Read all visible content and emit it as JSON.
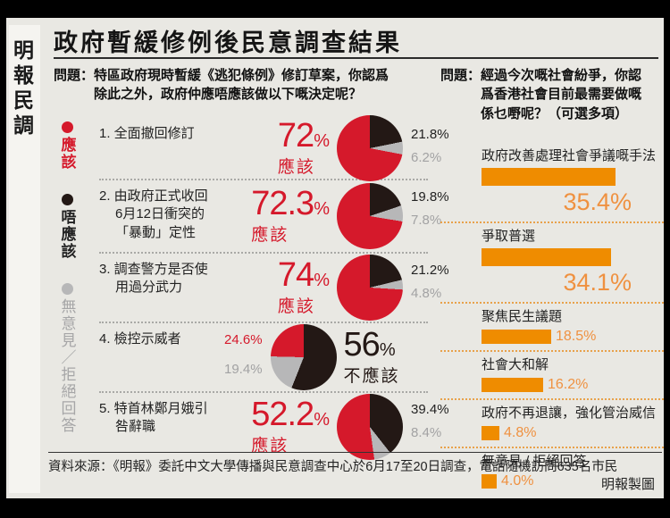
{
  "frame": {
    "masthead": "明報民調",
    "title": "政府暫緩修例後民意調查結果",
    "source": "資料來源：《明報》委託中文大學傳播與民意調查中心於6月17至20日調查，電話隨機訪問635名市民",
    "credit": "明報製圖"
  },
  "colors": {
    "agree_red": "#d5192b",
    "disagree_black": "#231815",
    "no_opinion_gray": "#b7b7b8",
    "bar_orange": "#ef8c00",
    "bar_value_orange": "#ef9140",
    "panel_bg": "#e9e8e3"
  },
  "chart_data": [
    {
      "type": "pie",
      "title": "特區政府現時暫緩《逃犯條例》修訂草案，你認爲除此之外，政府仲應唔應該做以下嘅決定呢？",
      "question_prefix": "問題：",
      "question_lines": "特區政府現時暫緩《逃犯條例》修訂草案，你認爲\n除此之外，政府仲應唔應該做以下嘅決定呢？",
      "legend": [
        {
          "label": "應該",
          "color": "#d5192b"
        },
        {
          "label": "唔應該",
          "color": "#231815"
        },
        {
          "label": "無意見／拒絕回答",
          "color": "#b7b7b8"
        }
      ],
      "colors": {
        "agree": "#d5192b",
        "disagree": "#231815",
        "no_opinion": "#b7b7b8"
      },
      "items": [
        {
          "label": "1. 全面撤回修訂",
          "values": {
            "agree": 72,
            "disagree": 21.8,
            "no_opinion": 6.2
          },
          "big": {
            "num": "72",
            "unit": "%",
            "caption": "應該"
          },
          "side": {
            "disagree": "21.8%",
            "no_opinion": "6.2%"
          }
        },
        {
          "label": "2. 由政府正式收回\n6月12日衝突的\n「暴動」定性",
          "values": {
            "agree": 72.3,
            "disagree": 19.8,
            "no_opinion": 7.8
          },
          "big": {
            "num": "72.3",
            "unit": "%",
            "caption": "應該"
          },
          "side": {
            "disagree": "19.8%",
            "no_opinion": "7.8%"
          }
        },
        {
          "label": "3. 調查警方是否使\n用過分武力",
          "values": {
            "agree": 74,
            "disagree": 21.2,
            "no_opinion": 4.8
          },
          "big": {
            "num": "74",
            "unit": "%",
            "caption": "應該"
          },
          "side": {
            "disagree": "21.2%",
            "no_opinion": "4.8%"
          }
        },
        {
          "label": "4. 檢控示威者",
          "values": {
            "agree": 24.6,
            "disagree": 56,
            "no_opinion": 19.4
          },
          "big": {
            "num": "56",
            "unit": "%",
            "caption": "不應該"
          },
          "side": {
            "agree": "24.6%",
            "no_opinion": "19.4%"
          }
        },
        {
          "label": "5. 特首林鄭月娥引\n咎辭職",
          "values": {
            "agree": 52.2,
            "disagree": 39.4,
            "no_opinion": 8.4
          },
          "big": {
            "num": "52.2",
            "unit": "%",
            "caption": "應該"
          },
          "side": {
            "disagree": "39.4%",
            "no_opinion": "8.4%"
          }
        }
      ]
    },
    {
      "type": "bar",
      "title": "經過今次嘅社會紛爭，你認爲香港社會目前最需要做嘅係乜嘢呢？（可選多項）",
      "question_prefix": "問題：",
      "question_lines": "經過今次嘅社會紛爭，你認\n爲香港社會目前最需要做嘅\n係乜嘢呢？（可選多項）",
      "categories": [
        "政府改善處理社會爭議嘅手法",
        "爭取普選",
        "聚焦民生議題",
        "社會大和解",
        "政府不再退讓，強化管治威信",
        "無意見 / 拒絕回答"
      ],
      "values": [
        35.4,
        34.1,
        18.5,
        16.2,
        4.8,
        4.0
      ],
      "value_labels": [
        "35.4%",
        "34.1%",
        "18.5%",
        "16.2%",
        "4.8%",
        "4.0%"
      ],
      "color": "#ef8c00",
      "xlim": [
        0,
        45
      ],
      "legend_position": "none",
      "grid": false
    }
  ]
}
